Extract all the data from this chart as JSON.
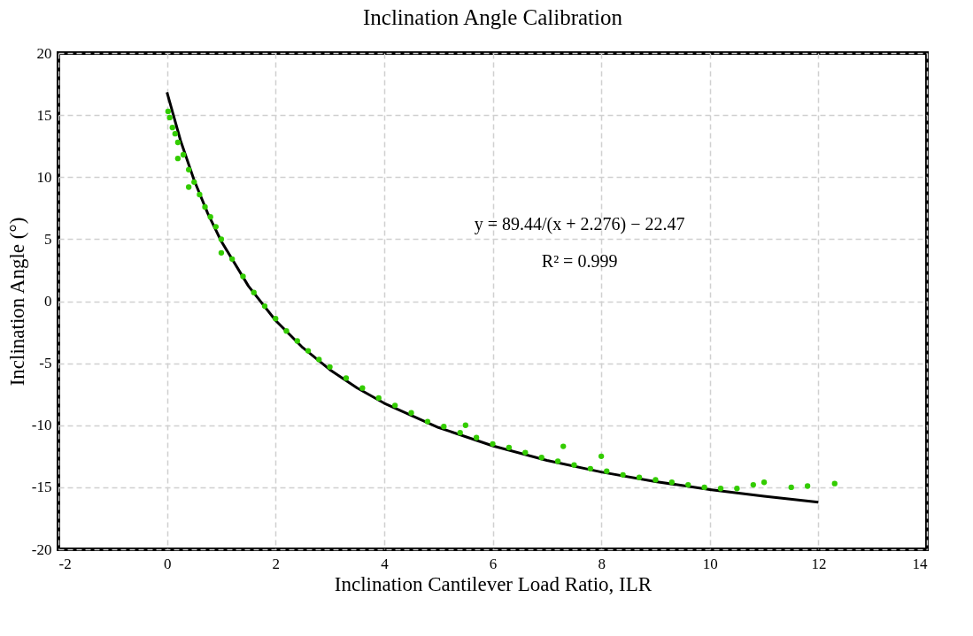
{
  "chart_data": {
    "type": "scatter",
    "title": "Inclination Angle Calibration",
    "xlabel": "Inclination Cantilever Load Ratio, ILR",
    "ylabel": "Inclination Angle (°)",
    "xlim": [
      -2,
      14
    ],
    "xticks": [
      -2,
      0,
      2,
      4,
      6,
      8,
      10,
      12,
      14
    ],
    "ylim": [
      -20,
      20
    ],
    "yticks": [
      -20,
      -15,
      -10,
      -5,
      0,
      5,
      10,
      15,
      20
    ],
    "grid": true,
    "annotations": [
      "y = 89.44/(x + 2.276) − 22.47",
      "R² = 0.999"
    ],
    "series": [
      {
        "color": "#33cc00",
        "marker": "circle",
        "x": [
          0.02,
          0.05,
          0.1,
          0.15,
          0.2,
          0.2,
          0.3,
          0.4,
          0.4,
          0.5,
          0.6,
          0.7,
          0.8,
          0.9,
          1.0,
          1.0,
          1.2,
          1.4,
          1.6,
          1.8,
          2.0,
          2.2,
          2.4,
          2.6,
          2.8,
          3.0,
          3.3,
          3.6,
          3.9,
          4.2,
          4.5,
          4.8,
          5.1,
          5.4,
          5.5,
          5.7,
          6.0,
          6.3,
          6.6,
          6.9,
          7.2,
          7.3,
          7.5,
          7.8,
          8.0,
          8.1,
          8.4,
          8.7,
          9.0,
          9.3,
          9.6,
          9.9,
          10.2,
          10.5,
          10.8,
          11.0,
          11.5,
          11.8,
          12.3
        ],
        "values": [
          15.3,
          14.8,
          14.0,
          13.5,
          12.8,
          11.5,
          11.8,
          10.6,
          9.2,
          9.6,
          8.6,
          7.6,
          6.8,
          6.0,
          5.0,
          3.9,
          3.4,
          2.0,
          0.7,
          -0.4,
          -1.4,
          -2.4,
          -3.2,
          -4.0,
          -4.7,
          -5.3,
          -6.2,
          -7.0,
          -7.8,
          -8.4,
          -9.0,
          -9.7,
          -10.1,
          -10.6,
          -10.0,
          -11.0,
          -11.5,
          -11.8,
          -12.2,
          -12.6,
          -12.9,
          -11.7,
          -13.2,
          -13.5,
          -12.5,
          -13.7,
          -14.0,
          -14.2,
          -14.4,
          -14.6,
          -14.8,
          -15.0,
          -15.1,
          -15.1,
          -14.8,
          -14.6,
          -15.0,
          -14.9,
          -14.7
        ]
      },
      {
        "type": "line",
        "color": "#000000",
        "marker": "none",
        "line_style": "solid",
        "x": [
          0,
          0.25,
          0.5,
          0.75,
          1,
          1.5,
          2,
          2.5,
          3,
          3.5,
          4,
          5,
          6,
          7,
          8,
          9,
          10,
          11,
          12
        ],
        "values": [
          16.83,
          12.94,
          9.75,
          7.09,
          4.83,
          1.22,
          -1.55,
          -3.74,
          -5.52,
          -6.99,
          -8.22,
          -10.18,
          -11.66,
          -12.83,
          -13.77,
          -14.54,
          -15.18,
          -15.73,
          -16.21
        ]
      }
    ]
  }
}
